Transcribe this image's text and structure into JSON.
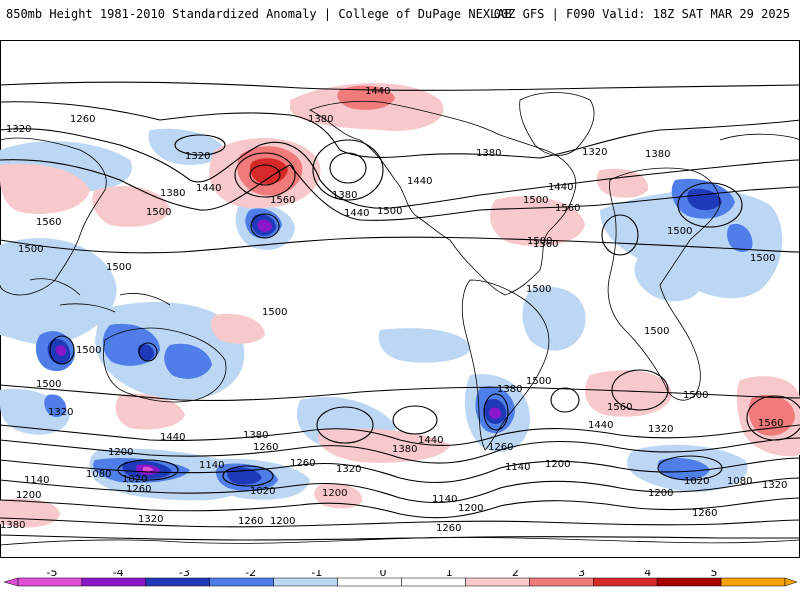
{
  "header": {
    "title": "850mb Height 1981-2010 Standardized Anomaly | College of DuPage NEXLAB",
    "run_info": "00Z GFS | F090 Valid: 18Z SAT MAR 29 2025"
  },
  "colors": {
    "neg_5": "#e14fd8",
    "neg_4": "#8a17c9",
    "neg_3": "#1f3ab8",
    "neg_2": "#4f7ee8",
    "neg_1": "#bcd7f4",
    "zero": "#ffffff",
    "pos_1": "#f7c9cc",
    "pos_2": "#ef7b7b",
    "pos_3": "#d62a2a",
    "pos_4": "#a80000",
    "pos_5": "#f6a300"
  },
  "contour_labels": [
    "1440",
    "1260",
    "1320",
    "1380",
    "1320",
    "1380",
    "1440",
    "1560",
    "1500",
    "1560",
    "1380",
    "1440",
    "1500",
    "1440",
    "1380",
    "1320",
    "1380",
    "1440",
    "1500",
    "1560",
    "1500",
    "1560",
    "1500",
    "1500",
    "1500",
    "1500",
    "1500",
    "1500",
    "1500",
    "1500",
    "1500",
    "1500",
    "1320",
    "1440",
    "1380",
    "1260",
    "1200",
    "1140",
    "1080",
    "1020",
    "1260",
    "1200",
    "1140",
    "1020",
    "1320",
    "1380",
    "1440",
    "1200",
    "1260",
    "1380",
    "1440",
    "1320",
    "1260",
    "1140",
    "1200",
    "1140",
    "1200",
    "1020",
    "1080",
    "1320",
    "1260",
    "1200",
    "1380",
    "1260",
    "1200",
    "1260",
    "1560",
    "1560",
    "1500",
    "1320"
  ],
  "legend": {
    "ticks": [
      "-5",
      "-4",
      "-3",
      "-2",
      "-1",
      "0",
      "1",
      "2",
      "3",
      "4",
      "5"
    ]
  }
}
